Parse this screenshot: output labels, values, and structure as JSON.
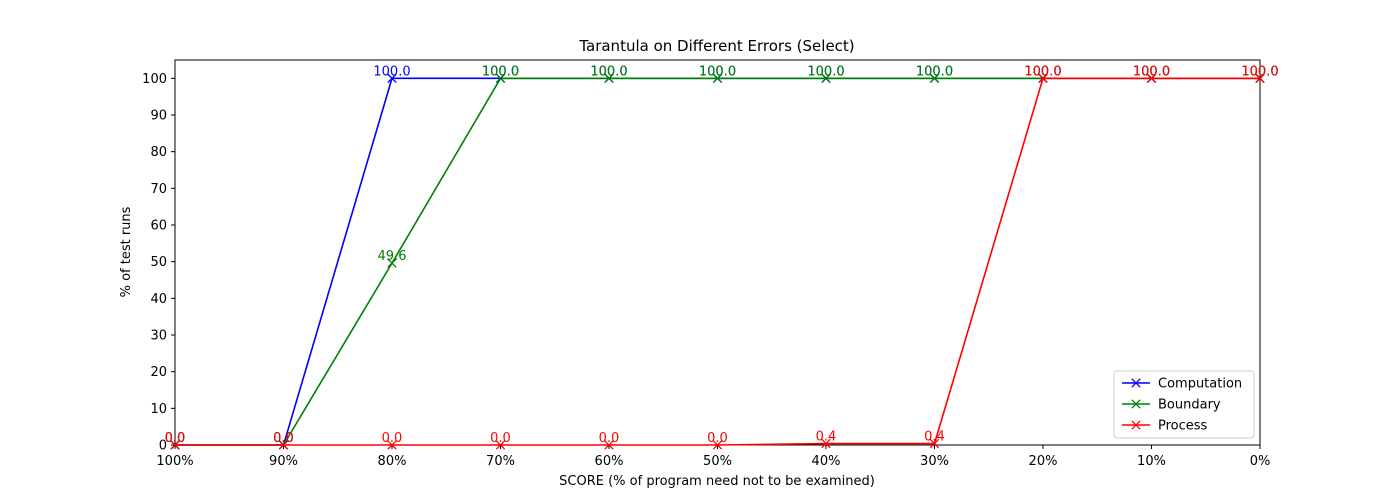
{
  "chart_data": {
    "type": "line",
    "title": "Tarantula on Different Errors (Select)",
    "xlabel": "SCORE (% of program need not to be examined)",
    "ylabel": "% of test runs",
    "categories": [
      "100%",
      "90%",
      "80%",
      "70%",
      "60%",
      "50%",
      "40%",
      "30%",
      "20%",
      "10%",
      "0%"
    ],
    "ylim": [
      0,
      105
    ],
    "yticks": [
      0,
      10,
      20,
      30,
      40,
      50,
      60,
      70,
      80,
      90,
      100
    ],
    "grid": false,
    "legend_position": "lower-right",
    "series": [
      {
        "name": "Computation",
        "color": "#0000ff",
        "marker": "x",
        "values": [
          0.0,
          0.0,
          100.0,
          100.0,
          100.0,
          100.0,
          100.0,
          100.0,
          100.0,
          100.0,
          100.0
        ],
        "labels": [
          "0.0",
          "0.0",
          "100.0",
          "100.0",
          "100.0",
          "100.0",
          "100.0",
          "100.0",
          "100.0",
          "100.0",
          "100.0"
        ]
      },
      {
        "name": "Boundary",
        "color": "#008000",
        "marker": "x",
        "values": [
          0.0,
          0.0,
          49.6,
          100.0,
          100.0,
          100.0,
          100.0,
          100.0,
          100.0,
          100.0,
          100.0
        ],
        "labels": [
          "0.0",
          "0.0",
          "49.6",
          "100.0",
          "100.0",
          "100.0",
          "100.0",
          "100.0",
          "100.0",
          "100.0",
          "100.0"
        ]
      },
      {
        "name": "Process",
        "color": "#ff0000",
        "marker": "x",
        "values": [
          0.0,
          0.0,
          0.0,
          0.0,
          0.0,
          0.0,
          0.4,
          0.4,
          100.0,
          100.0,
          100.0
        ],
        "labels": [
          "0.0",
          "0.0",
          "0.0",
          "0.0",
          "0.0",
          "0.0",
          "0.4",
          "0.4",
          "100.0",
          "100.0",
          "100.0"
        ]
      }
    ]
  }
}
